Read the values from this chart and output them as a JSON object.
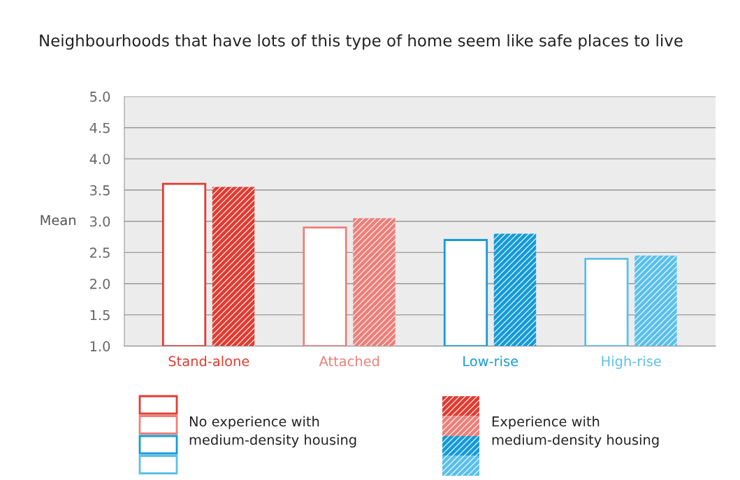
{
  "chart_data": {
    "type": "bar",
    "title": "Neighbourhoods that have lots of this type of home seem like safe places to live",
    "ylabel": "Mean",
    "categories": [
      "Stand-alone",
      "Attached",
      "Low-rise",
      "High-rise"
    ],
    "series": [
      {
        "name": "No experience with\nmedium-density housing",
        "colors": [
          "#e03c31",
          "#ec8079",
          "#159bd7",
          "#5ac0ea"
        ],
        "values": [
          3.6,
          2.9,
          2.7,
          2.4
        ]
      },
      {
        "name": "Experience with\nmedium-density housing",
        "colors": [
          "#e03c31",
          "#ec8079",
          "#159bd7",
          "#5ac0ea"
        ],
        "values": [
          3.55,
          3.05,
          2.8,
          2.45
        ]
      }
    ],
    "ylim": [
      1.0,
      5.0
    ],
    "yticks": [
      {
        "value": 1,
        "label": "1.0"
      },
      {
        "value": 1.5,
        "label": "1.5"
      },
      {
        "value": 2,
        "label": "2.0"
      },
      {
        "value": 2.5,
        "label": "2.5"
      },
      {
        "value": 3,
        "label": "3.0"
      },
      {
        "value": 3.5,
        "label": "3.5"
      },
      {
        "value": 4,
        "label": "4.0"
      },
      {
        "value": 4.5,
        "label": "4.5"
      },
      {
        "value": 5,
        "label": "5.0"
      }
    ],
    "grid": "y",
    "legend": "bottom"
  }
}
